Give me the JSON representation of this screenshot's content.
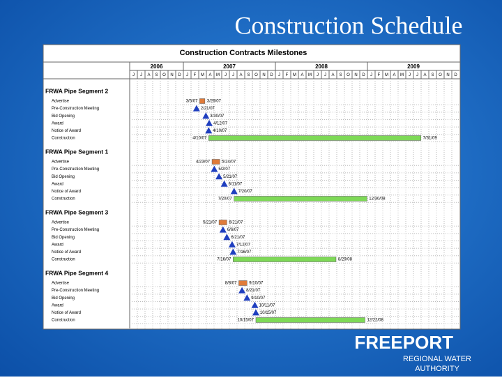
{
  "title": "Construction Schedule",
  "schedule": {
    "title": "Construction Contracts Milestones",
    "years": [
      {
        "label": "2006",
        "months": [
          "J",
          "J",
          "A",
          "S",
          "O",
          "N",
          "D"
        ]
      },
      {
        "label": "2007",
        "months": [
          "J",
          "F",
          "M",
          "A",
          "M",
          "J",
          "J",
          "A",
          "S",
          "O",
          "N",
          "D"
        ]
      },
      {
        "label": "2008",
        "months": [
          "J",
          "F",
          "M",
          "A",
          "M",
          "J",
          "J",
          "A",
          "S",
          "O",
          "N",
          "D"
        ]
      },
      {
        "label": "2009",
        "months": [
          "J",
          "F",
          "M",
          "A",
          "M",
          "J",
          "J",
          "A",
          "S",
          "O",
          "N",
          "D"
        ]
      }
    ],
    "segments": [
      {
        "name": "FRWA Pipe Segment 2",
        "tasks": [
          {
            "name": "Advertise",
            "start": "3/5/07",
            "end": "3/26/07",
            "color": "#e07b39"
          },
          {
            "name": "Pre-Construction Meeting",
            "date": "2/21/07"
          },
          {
            "name": "Bid Opening",
            "date": "3/30/07"
          },
          {
            "name": "Award",
            "date": "4/12/07"
          },
          {
            "name": "Notice of Award",
            "date": "4/10/07"
          },
          {
            "name": "Construction",
            "start": "4/10/07",
            "end": "7/31/09",
            "color": "#7ed957"
          }
        ]
      },
      {
        "name": "FRWA Pipe Segment 1",
        "tasks": [
          {
            "name": "Advertise",
            "start": "4/23/07",
            "end": "5/24/07",
            "color": "#e07b39"
          },
          {
            "name": "Pre-Construction Meeting",
            "date": "5/2/07"
          },
          {
            "name": "Bid Opening",
            "date": "5/21/07"
          },
          {
            "name": "Award",
            "date": "6/11/07"
          },
          {
            "name": "Notice of Award",
            "date": "7/20/07"
          },
          {
            "name": "Construction",
            "start": "7/20/07",
            "end": "12/30/08",
            "color": "#7ed957"
          }
        ]
      },
      {
        "name": "FRWA Pipe Segment 3",
        "tasks": [
          {
            "name": "Advertise",
            "start": "5/21/07",
            "end": "6/21/07",
            "color": "#e07b39"
          },
          {
            "name": "Pre-Construction Meeting",
            "date": "6/6/07"
          },
          {
            "name": "Bid Opening",
            "date": "6/21/07"
          },
          {
            "name": "Award",
            "date": "7/12/07"
          },
          {
            "name": "Notice of Award",
            "date": "7/16/07"
          },
          {
            "name": "Construction",
            "start": "7/16/07",
            "end": "8/29/08",
            "color": "#7ed957"
          }
        ]
      },
      {
        "name": "FRWA Pipe Segment 4",
        "tasks": [
          {
            "name": "Advertise",
            "start": "8/8/07",
            "end": "9/10/07",
            "color": "#e07b39"
          },
          {
            "name": "Pre-Construction Meeting",
            "date": "8/21/07"
          },
          {
            "name": "Bid Opening",
            "date": "9/10/07"
          },
          {
            "name": "Award",
            "date": "10/11/07"
          },
          {
            "name": "Notice of Award",
            "date": "10/15/07"
          },
          {
            "name": "Construction",
            "start": "10/15/07",
            "end": "12/22/08",
            "color": "#7ed957"
          }
        ]
      }
    ]
  },
  "logo": {
    "name": "FREEPORT",
    "line1": "REGIONAL WATER",
    "line2": "AUTHORITY"
  }
}
